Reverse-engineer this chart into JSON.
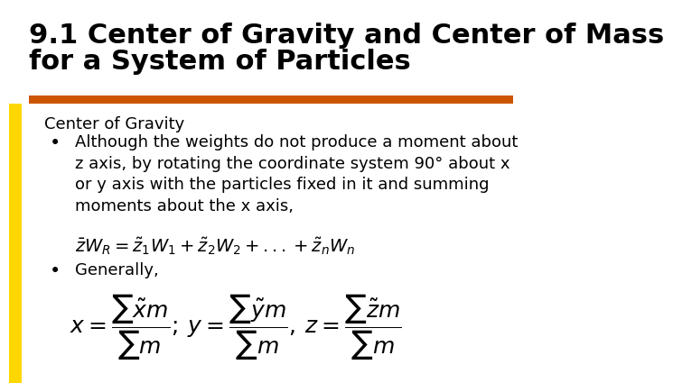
{
  "title_line1": "9.1 Center of Gravity and Center of Mass",
  "title_line2": "for a System of Particles",
  "title_fontsize": 22,
  "title_color": "#000000",
  "background_color": "#ffffff",
  "orange_bar_color": "#CC5500",
  "yellow_bar_color": "#FFD700",
  "subtitle": "Center of Gravity",
  "bullet2": "Generally,",
  "text_fontsize": 13,
  "eq_fontsize": 14
}
